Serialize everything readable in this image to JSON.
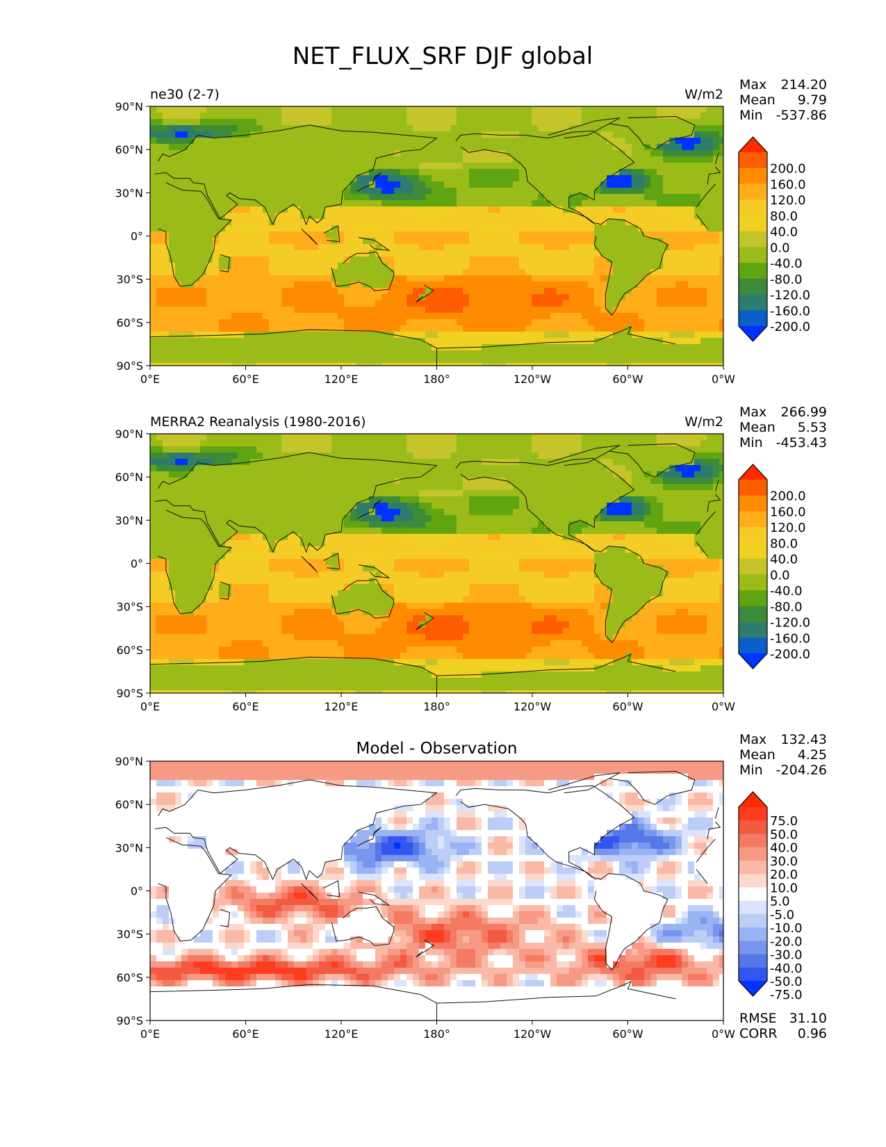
{
  "suptitle": "NET_FLUX_SRF DJF global",
  "chart_data": [
    {
      "type": "heatmap",
      "title_left": "ne30 (2-7)",
      "title_center": "",
      "title_right": "W/m2",
      "stats": [
        {
          "label": "Max",
          "value": "214.20"
        },
        {
          "label": "Mean",
          "value": "9.79"
        },
        {
          "label": "Min",
          "value": "-537.86"
        }
      ],
      "xticks": [
        "0°E",
        "60°E",
        "120°E",
        "180°",
        "120°W",
        "60°W",
        "0°W"
      ],
      "yticks": [
        "90°N",
        "60°N",
        "30°N",
        "0°",
        "30°S",
        "60°S",
        "90°S"
      ],
      "xlim": [
        0,
        360
      ],
      "ylim": [
        -90,
        90
      ],
      "colorbar": {
        "extend": "both",
        "ticks": [
          "200.0",
          "160.0",
          "120.0",
          "80.0",
          "40.0",
          "0.0",
          "-40.0",
          "-80.0",
          "-120.0",
          "-160.0",
          "-200.0"
        ],
        "colors": [
          "#ff2a00",
          "#ff5e00",
          "#ff8c00",
          "#ffad1a",
          "#f5cc25",
          "#f0d020",
          "#c5c42a",
          "#9bbb19",
          "#60a511",
          "#3d8a38",
          "#2e7d6c",
          "#0a5fc8",
          "#0033ff"
        ]
      }
    },
    {
      "type": "heatmap",
      "title_left": "MERRA2 Reanalysis (1980-2016)",
      "title_center": "",
      "title_right": "W/m2",
      "stats": [
        {
          "label": "Max",
          "value": "266.99"
        },
        {
          "label": "Mean",
          "value": "5.53"
        },
        {
          "label": "Min",
          "value": "-453.43"
        }
      ],
      "xticks": [
        "0°E",
        "60°E",
        "120°E",
        "180°",
        "120°W",
        "60°W",
        "0°W"
      ],
      "yticks": [
        "90°N",
        "60°N",
        "30°N",
        "0°",
        "30°S",
        "60°S",
        "90°S"
      ],
      "xlim": [
        0,
        360
      ],
      "ylim": [
        -90,
        90
      ],
      "colorbar": {
        "extend": "both",
        "ticks": [
          "200.0",
          "160.0",
          "120.0",
          "80.0",
          "40.0",
          "0.0",
          "-40.0",
          "-80.0",
          "-120.0",
          "-160.0",
          "-200.0"
        ],
        "colors": [
          "#ff2a00",
          "#ff5e00",
          "#ff8c00",
          "#ffad1a",
          "#f5cc25",
          "#f0d020",
          "#c5c42a",
          "#9bbb19",
          "#60a511",
          "#3d8a38",
          "#2e7d6c",
          "#0a5fc8",
          "#0033ff"
        ]
      }
    },
    {
      "type": "heatmap",
      "title_left": "",
      "title_center": "Model - Observation",
      "title_right": "",
      "stats": [
        {
          "label": "Max",
          "value": "132.43"
        },
        {
          "label": "Mean",
          "value": "4.25"
        },
        {
          "label": "Min",
          "value": "-204.26"
        }
      ],
      "extra_stats": [
        {
          "label": "RMSE",
          "value": "31.10"
        },
        {
          "label": "CORR",
          "value": "0.96"
        }
      ],
      "xticks": [
        "0°E",
        "60°E",
        "120°E",
        "180°",
        "120°W",
        "60°W",
        "0°W"
      ],
      "yticks": [
        "90°N",
        "60°N",
        "30°N",
        "0°",
        "30°S",
        "60°S",
        "90°S"
      ],
      "xlim": [
        0,
        360
      ],
      "ylim": [
        -90,
        90
      ],
      "colorbar": {
        "extend": "both",
        "ticks": [
          "75.0",
          "50.0",
          "40.0",
          "30.0",
          "20.0",
          "10.0",
          "5.0",
          "-5.0",
          "-10.0",
          "-20.0",
          "-30.0",
          "-40.0",
          "-50.0",
          "-75.0"
        ],
        "colors": [
          "#ff2a00",
          "#ff3c1e",
          "#f25a42",
          "#f57a63",
          "#f79a85",
          "#fab8a6",
          "#fdd8cc",
          "#ffffff",
          "#dce4fb",
          "#bccdf7",
          "#9ab3f3",
          "#7896ee",
          "#5577ea",
          "#3355f0",
          "#0033ff"
        ]
      }
    }
  ]
}
